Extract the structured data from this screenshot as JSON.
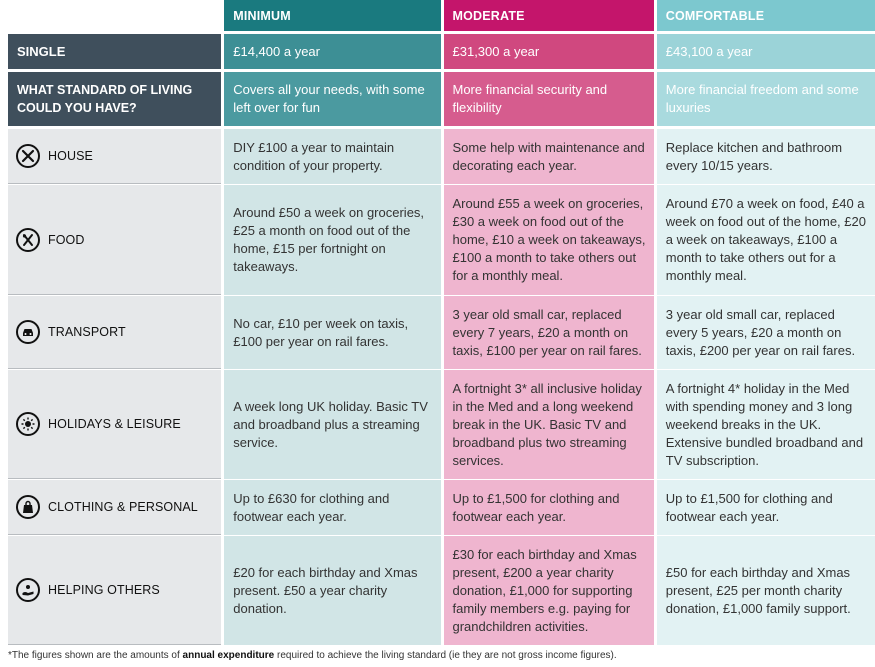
{
  "header": {
    "minimum": "MINIMUM",
    "moderate": "MODERATE",
    "comfortable": "COMFORTABLE"
  },
  "single": {
    "label": "SINGLE",
    "minimum": "£14,400 a year",
    "moderate": "£31,300 a year",
    "comfortable": "£43,100 a year"
  },
  "standard": {
    "label": "WHAT STANDARD OF LIVING COULD YOU HAVE?",
    "minimum": "Covers all your needs, with some left over for fun",
    "moderate": "More financial security and flexibility",
    "comfortable": "More financial freedom and some luxuries"
  },
  "rows": [
    {
      "label": "HOUSE",
      "icon": "tools-icon",
      "minimum": "DIY £100 a year to maintain condition of your property.",
      "moderate": "Some help with maintenance and decorating each year.",
      "comfortable": "Replace kitchen and bathroom every 10/15 years."
    },
    {
      "label": "FOOD",
      "icon": "cutlery-icon",
      "minimum": "Around £50 a week on groceries, £25 a month on food out of the home, £15 per fortnight on takeaways.",
      "moderate": "Around £55 a week on groceries, £30 a week on food out of the home, £10 a week on takeaways, £100 a month to take others out for a monthly meal.",
      "comfortable": "Around £70 a week on food, £40 a week on food out of the home, £20 a week on takeaways, £100 a month to take others out for a monthly meal."
    },
    {
      "label": "TRANSPORT",
      "icon": "car-icon",
      "minimum": "No car, £10 per week on taxis, £100 per year on rail fares.",
      "moderate": "3 year old small car, replaced every 7 years, £20 a month on taxis, £100 per year on rail fares.",
      "comfortable": "3 year old small car, replaced every 5 years, £20 a month on taxis, £200 per year on rail fares."
    },
    {
      "label": "HOLIDAYS & LEISURE",
      "icon": "sun-icon",
      "minimum": "A week long UK holiday. Basic TV and broadband plus a streaming service.",
      "moderate": "A fortnight 3* all inclusive holiday in the Med and a long weekend break in the UK. Basic TV and broadband plus two streaming services.",
      "comfortable": "A fortnight 4* holiday in the Med with spending money and 3 long weekend breaks in the UK. Extensive bundled broadband and TV subscription."
    },
    {
      "label": "CLOTHING & PERSONAL",
      "icon": "shopping-bag-icon",
      "minimum": "Up to £630 for clothing and footwear each year.",
      "moderate": "Up to £1,500 for clothing and footwear each year.",
      "comfortable": "Up to £1,500 for clothing and footwear each year."
    },
    {
      "label": "HELPING OTHERS",
      "icon": "helping-hand-icon",
      "minimum": "£20 for each birthday and Xmas present. £50 a year charity donation.",
      "moderate": "£30 for each birthday and Xmas present, £200 a year charity donation, £1,000 for supporting family members e.g. paying for grandchildren activities.",
      "comfortable": "£50 for each birthday and Xmas present, £25 per month charity donation, £1,000 family support."
    }
  ],
  "footnote": {
    "before": "*The figures shown are the amounts of ",
    "bold": "annual expenditure",
    "after": " required to achieve the living standard (ie they are not gross income figures)."
  }
}
